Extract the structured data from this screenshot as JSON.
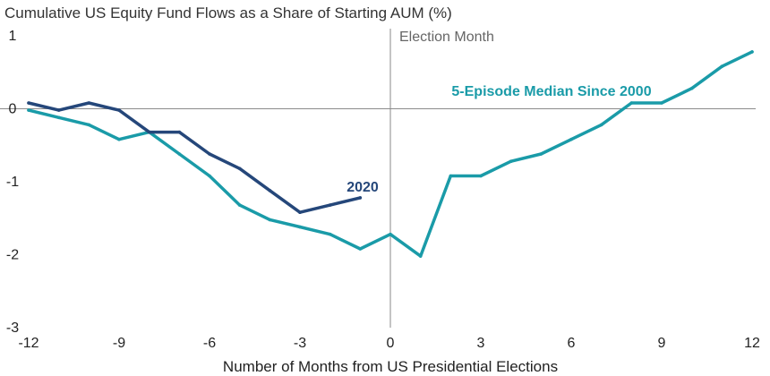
{
  "chart_data": {
    "type": "line",
    "title": "Cumulative US Equity Fund Flows as a Share of Starting AUM (%)",
    "xlabel": "Number of Months from US Presidential Elections",
    "ylabel": "",
    "xlim": [
      -12,
      12
    ],
    "ylim": [
      -3,
      1
    ],
    "xticks": [
      -12,
      -9,
      -6,
      -3,
      0,
      3,
      6,
      9,
      12
    ],
    "xtick_labels": [
      "-12",
      "-9",
      "-6",
      "-3",
      "0",
      "3",
      "6",
      "9",
      "12"
    ],
    "yticks": [
      1,
      0,
      -1,
      -2,
      -3
    ],
    "ytick_labels": [
      "1",
      "0",
      "-1",
      "-2",
      "-3"
    ],
    "grid": false,
    "reference_lines": {
      "horizontal_at_y": 0,
      "vertical_at_x": 0
    },
    "annotation": "Election Month",
    "series": [
      {
        "name": "5-Episode Median Since 2000",
        "color": "#1a9ba8",
        "x": [
          -12,
          -11,
          -10,
          -9,
          -8,
          -7,
          -6,
          -5,
          -4,
          -3,
          -2,
          -1,
          0,
          1,
          2,
          3,
          4,
          5,
          6,
          7,
          8,
          9,
          10,
          11,
          12
        ],
        "y": [
          -0.02,
          -0.12,
          -0.22,
          -0.42,
          -0.32,
          -0.62,
          -0.92,
          -1.32,
          -1.52,
          -1.62,
          -1.72,
          -1.92,
          -1.72,
          -2.02,
          -0.92,
          -0.92,
          -0.72,
          -0.62,
          -0.42,
          -0.22,
          0.08,
          0.08,
          0.28,
          0.58,
          0.78
        ]
      },
      {
        "name": "2020",
        "color": "#25477a",
        "x": [
          -12,
          -11,
          -10,
          -9,
          -8,
          -7,
          -6,
          -5,
          -4,
          -3,
          -2,
          -1
        ],
        "y": [
          0.08,
          -0.02,
          0.08,
          -0.02,
          -0.32,
          -0.32,
          -0.62,
          -0.82,
          -1.12,
          -1.42,
          -1.32,
          -1.22
        ]
      }
    ]
  }
}
